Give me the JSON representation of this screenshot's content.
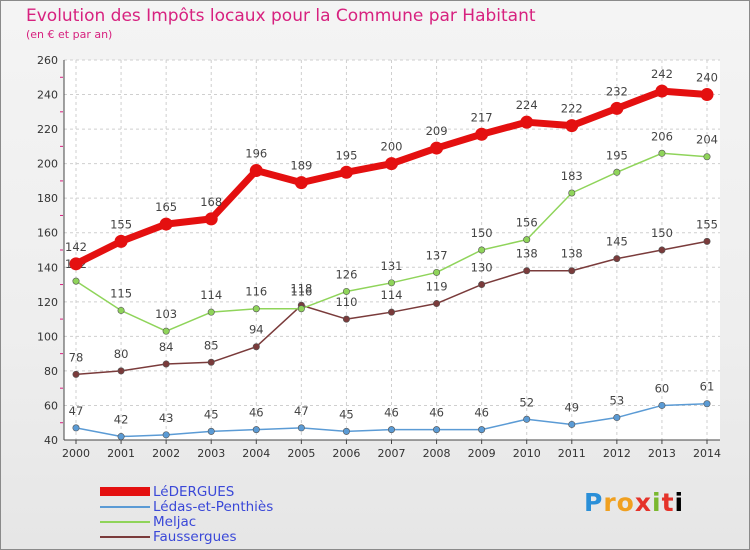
{
  "chart_data": {
    "type": "line",
    "title": "Evolution des Impôts locaux pour la Commune par Habitant",
    "subtitle": "(en € et par an)",
    "xlabel": "",
    "ylabel": "",
    "ylim": [
      40,
      260
    ],
    "yticks": [
      40,
      60,
      80,
      100,
      120,
      140,
      160,
      180,
      200,
      220,
      240,
      260
    ],
    "grid": true,
    "legend_position": "bottom-left",
    "x": [
      "2000",
      "2001",
      "2002",
      "2003",
      "2004",
      "2005",
      "2006",
      "2007",
      "2008",
      "2009",
      "2010",
      "2011",
      "2012",
      "2013",
      "2014"
    ],
    "series": [
      {
        "name": "LéDERGUES",
        "color": "#e41010",
        "emphasis": "thick",
        "values": [
          142,
          155,
          165,
          168,
          196,
          189,
          195,
          200,
          209,
          217,
          224,
          222,
          232,
          242,
          240
        ]
      },
      {
        "name": "Lédas-et-Penthiès",
        "color": "#5b9bd5",
        "emphasis": "normal",
        "values": [
          47,
          42,
          43,
          45,
          46,
          47,
          45,
          46,
          46,
          46,
          52,
          49,
          53,
          60,
          61
        ]
      },
      {
        "name": "Meljac",
        "color": "#8fd45a",
        "emphasis": "normal",
        "values": [
          132,
          115,
          103,
          114,
          116,
          116,
          126,
          131,
          137,
          150,
          156,
          183,
          195,
          206,
          204
        ]
      },
      {
        "name": "Faussergues",
        "color": "#7a3b3b",
        "emphasis": "normal",
        "values": [
          78,
          80,
          84,
          85,
          94,
          118,
          110,
          114,
          119,
          130,
          138,
          138,
          145,
          150,
          155
        ]
      }
    ]
  },
  "logo": {
    "letters": [
      "P",
      "r",
      "o",
      "x",
      "i",
      "t",
      "i"
    ]
  }
}
